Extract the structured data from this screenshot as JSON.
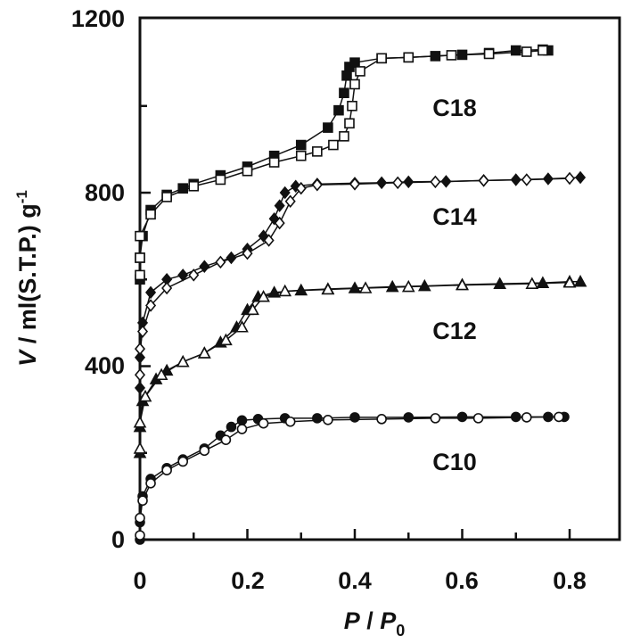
{
  "chart_data": {
    "type": "scatter",
    "xlabel": {
      "main": "P",
      "sep": " / ",
      "sub_main": "P",
      "sub": "0"
    },
    "ylabel": {
      "italic": "V",
      "rest": " / ml(S.T.P.) g",
      "sup": "-1"
    },
    "xlim": [
      0,
      0.9
    ],
    "ylim": [
      0,
      1200
    ],
    "xticks": [
      "0",
      "0.2",
      "0.4",
      "0.6",
      "0.8"
    ],
    "yticks": [
      "0",
      "400",
      "800",
      "1200"
    ],
    "grid": false,
    "series": [
      {
        "name": "C18",
        "marker": "square",
        "adsorption": [
          [
            0,
            600
          ],
          [
            0,
            650
          ],
          [
            0.005,
            700
          ],
          [
            0.02,
            760
          ],
          [
            0.05,
            795
          ],
          [
            0.08,
            810
          ],
          [
            0.1,
            820
          ],
          [
            0.15,
            840
          ],
          [
            0.2,
            860
          ],
          [
            0.25,
            885
          ],
          [
            0.3,
            910
          ],
          [
            0.35,
            950
          ],
          [
            0.37,
            990
          ],
          [
            0.38,
            1030
          ],
          [
            0.385,
            1070
          ],
          [
            0.39,
            1090
          ],
          [
            0.4,
            1100
          ],
          [
            0.45,
            1110
          ],
          [
            0.5,
            1112
          ],
          [
            0.55,
            1115
          ],
          [
            0.6,
            1118
          ],
          [
            0.65,
            1122
          ],
          [
            0.7,
            1128
          ],
          [
            0.75,
            1130
          ],
          [
            0.76,
            1128
          ]
        ],
        "desorption": [
          [
            0.75,
            1128
          ],
          [
            0.72,
            1125
          ],
          [
            0.65,
            1120
          ],
          [
            0.58,
            1117
          ],
          [
            0.5,
            1112
          ],
          [
            0.45,
            1110
          ],
          [
            0.41,
            1080
          ],
          [
            0.4,
            1050
          ],
          [
            0.395,
            1000
          ],
          [
            0.39,
            960
          ],
          [
            0.38,
            930
          ],
          [
            0.36,
            910
          ],
          [
            0.33,
            895
          ],
          [
            0.3,
            885
          ],
          [
            0.25,
            870
          ],
          [
            0.2,
            850
          ],
          [
            0.15,
            830
          ],
          [
            0.1,
            815
          ],
          [
            0.05,
            790
          ],
          [
            0.02,
            750
          ],
          [
            0,
            700
          ],
          [
            0,
            650
          ],
          [
            0,
            610
          ]
        ]
      },
      {
        "name": "C14",
        "marker": "diamond",
        "adsorption": [
          [
            0,
            350
          ],
          [
            0,
            420
          ],
          [
            0.005,
            500
          ],
          [
            0.02,
            570
          ],
          [
            0.05,
            600
          ],
          [
            0.08,
            610
          ],
          [
            0.12,
            630
          ],
          [
            0.17,
            650
          ],
          [
            0.2,
            670
          ],
          [
            0.23,
            700
          ],
          [
            0.25,
            740
          ],
          [
            0.26,
            770
          ],
          [
            0.27,
            800
          ],
          [
            0.29,
            815
          ],
          [
            0.33,
            820
          ],
          [
            0.4,
            822
          ],
          [
            0.45,
            823
          ],
          [
            0.5,
            825
          ],
          [
            0.57,
            826
          ],
          [
            0.64,
            828
          ],
          [
            0.7,
            830
          ],
          [
            0.76,
            832
          ],
          [
            0.82,
            835
          ]
        ],
        "desorption": [
          [
            0.8,
            833
          ],
          [
            0.72,
            830
          ],
          [
            0.64,
            828
          ],
          [
            0.55,
            825
          ],
          [
            0.48,
            823
          ],
          [
            0.4,
            820
          ],
          [
            0.33,
            818
          ],
          [
            0.3,
            810
          ],
          [
            0.28,
            780
          ],
          [
            0.26,
            730
          ],
          [
            0.24,
            690
          ],
          [
            0.2,
            660
          ],
          [
            0.15,
            640
          ],
          [
            0.1,
            610
          ],
          [
            0.05,
            580
          ],
          [
            0.02,
            540
          ],
          [
            0.005,
            480
          ],
          [
            0,
            440
          ],
          [
            0,
            380
          ]
        ]
      },
      {
        "name": "C12",
        "marker": "triangle",
        "adsorption": [
          [
            0,
            200
          ],
          [
            0,
            260
          ],
          [
            0.005,
            320
          ],
          [
            0.03,
            370
          ],
          [
            0.05,
            390
          ],
          [
            0.08,
            410
          ],
          [
            0.12,
            430
          ],
          [
            0.15,
            455
          ],
          [
            0.18,
            490
          ],
          [
            0.2,
            530
          ],
          [
            0.22,
            560
          ],
          [
            0.25,
            570
          ],
          [
            0.3,
            575
          ],
          [
            0.35,
            578
          ],
          [
            0.4,
            580
          ],
          [
            0.47,
            583
          ],
          [
            0.53,
            585
          ],
          [
            0.6,
            588
          ],
          [
            0.67,
            590
          ],
          [
            0.75,
            592
          ],
          [
            0.8,
            595
          ],
          [
            0.82,
            595
          ]
        ],
        "desorption": [
          [
            0.8,
            593
          ],
          [
            0.73,
            590
          ],
          [
            0.6,
            587
          ],
          [
            0.5,
            583
          ],
          [
            0.42,
            580
          ],
          [
            0.35,
            577
          ],
          [
            0.27,
            573
          ],
          [
            0.23,
            560
          ],
          [
            0.21,
            530
          ],
          [
            0.19,
            490
          ],
          [
            0.16,
            460
          ],
          [
            0.12,
            430
          ],
          [
            0.08,
            410
          ],
          [
            0.04,
            380
          ],
          [
            0.01,
            330
          ],
          [
            0,
            270
          ],
          [
            0,
            210
          ]
        ]
      },
      {
        "name": "C10",
        "marker": "circle",
        "adsorption": [
          [
            0,
            0
          ],
          [
            0,
            40
          ],
          [
            0.005,
            100
          ],
          [
            0.02,
            140
          ],
          [
            0.05,
            165
          ],
          [
            0.08,
            185
          ],
          [
            0.12,
            210
          ],
          [
            0.15,
            240
          ],
          [
            0.17,
            260
          ],
          [
            0.19,
            275
          ],
          [
            0.22,
            278
          ],
          [
            0.27,
            280
          ],
          [
            0.33,
            280
          ],
          [
            0.4,
            282
          ],
          [
            0.5,
            282
          ],
          [
            0.6,
            283
          ],
          [
            0.7,
            283
          ],
          [
            0.76,
            283
          ],
          [
            0.79,
            283
          ]
        ],
        "desorption": [
          [
            0.78,
            283
          ],
          [
            0.72,
            282
          ],
          [
            0.63,
            280
          ],
          [
            0.55,
            280
          ],
          [
            0.45,
            278
          ],
          [
            0.35,
            276
          ],
          [
            0.28,
            272
          ],
          [
            0.23,
            268
          ],
          [
            0.19,
            255
          ],
          [
            0.16,
            230
          ],
          [
            0.12,
            205
          ],
          [
            0.08,
            180
          ],
          [
            0.05,
            160
          ],
          [
            0.02,
            130
          ],
          [
            0.005,
            90
          ],
          [
            0,
            50
          ],
          [
            0,
            10
          ]
        ]
      }
    ]
  }
}
